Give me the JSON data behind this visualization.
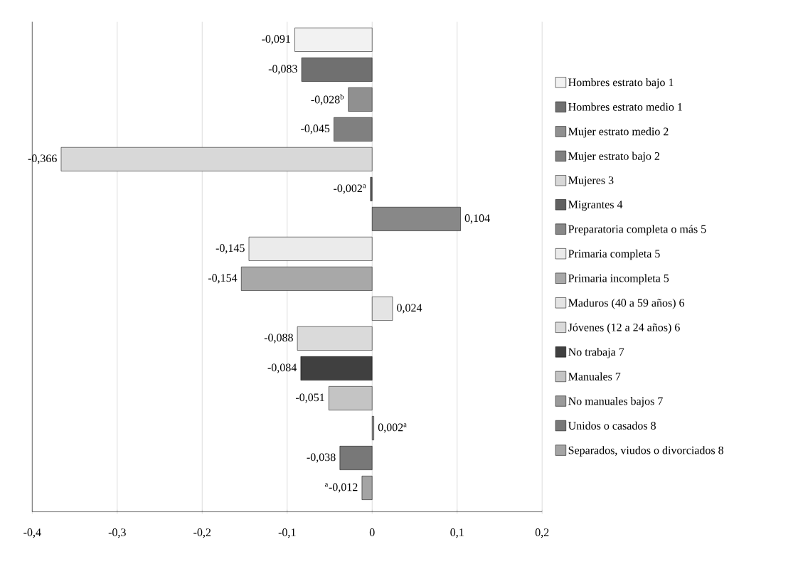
{
  "chart_data": {
    "type": "bar",
    "orientation": "horizontal",
    "categories": [
      null,
      null,
      null,
      null,
      null,
      null,
      null,
      null,
      null,
      null,
      null,
      null,
      null,
      null,
      null,
      null
    ],
    "xlim": [
      -0.4,
      0.2
    ],
    "xticks": [
      {
        "value": -0.4,
        "label": "-0,4"
      },
      {
        "value": -0.3,
        "label": "-0,3"
      },
      {
        "value": -0.2,
        "label": "-0,2"
      },
      {
        "value": -0.1,
        "label": "-0,1"
      },
      {
        "value": 0,
        "label": "0"
      },
      {
        "value": 0.1,
        "label": "0,1"
      },
      {
        "value": 0.2,
        "label": "0,2"
      }
    ],
    "grid": "x",
    "legend": "right",
    "tick_labels": "x",
    "series": [
      {
        "name": "Hombres estrato bajo 1",
        "color": "#f2f2f2",
        "values": [
          -0.091,
          null,
          null,
          null,
          null,
          null,
          null,
          null,
          null,
          null,
          null,
          null,
          null,
          null,
          null,
          null
        ],
        "value_labels": [
          "-0,091",
          null,
          null,
          null,
          null,
          null,
          null,
          null,
          null,
          null,
          null,
          null,
          null,
          null,
          null,
          null
        ]
      },
      {
        "name": "Hombres estrato medio 1",
        "color": "#707070",
        "values": [
          null,
          -0.083,
          null,
          null,
          null,
          null,
          null,
          null,
          null,
          null,
          null,
          null,
          null,
          null,
          null,
          null
        ],
        "value_labels": [
          null,
          "-0,083",
          null,
          null,
          null,
          null,
          null,
          null,
          null,
          null,
          null,
          null,
          null,
          null,
          null,
          null
        ]
      },
      {
        "name": "Mujer estrato medio 2",
        "color": "#909090",
        "values": [
          null,
          null,
          -0.028,
          null,
          null,
          null,
          null,
          null,
          null,
          null,
          null,
          null,
          null,
          null,
          null,
          null
        ],
        "value_labels": [
          null,
          null,
          "-0,028$^{b}$",
          null,
          null,
          null,
          null,
          null,
          null,
          null,
          null,
          null,
          null,
          null,
          null,
          null
        ]
      },
      {
        "name": "Mujer estrato bajo 2",
        "color": "#808080",
        "values": [
          null,
          null,
          null,
          -0.045,
          null,
          null,
          null,
          null,
          null,
          null,
          null,
          null,
          null,
          null,
          null,
          null
        ],
        "value_labels": [
          null,
          null,
          null,
          "-0,045",
          null,
          null,
          null,
          null,
          null,
          null,
          null,
          null,
          null,
          null,
          null,
          null
        ]
      },
      {
        "name": "Mujeres 3",
        "color": "#d8d8d8",
        "values": [
          null,
          null,
          null,
          null,
          -0.366,
          null,
          null,
          null,
          null,
          null,
          null,
          null,
          null,
          null,
          null,
          null
        ],
        "value_labels": [
          null,
          null,
          null,
          null,
          "-0,366",
          null,
          null,
          null,
          null,
          null,
          null,
          null,
          null,
          null,
          null,
          null
        ]
      },
      {
        "name": "Migrantes 4",
        "color": "#606060",
        "values": [
          null,
          null,
          null,
          null,
          null,
          -0.002,
          null,
          null,
          null,
          null,
          null,
          null,
          null,
          null,
          null,
          null
        ],
        "value_labels": [
          null,
          null,
          null,
          null,
          null,
          "-0,002$^{a}$",
          null,
          null,
          null,
          null,
          null,
          null,
          null,
          null,
          null,
          null
        ]
      },
      {
        "name": "Preparatoria completa o más 5",
        "color": "#888888",
        "values": [
          null,
          null,
          null,
          null,
          null,
          null,
          0.104,
          null,
          null,
          null,
          null,
          null,
          null,
          null,
          null,
          null
        ],
        "value_labels": [
          null,
          null,
          null,
          null,
          null,
          null,
          "0,104",
          null,
          null,
          null,
          null,
          null,
          null,
          null,
          null,
          null
        ]
      },
      {
        "name": "Primaria completa 5",
        "color": "#ebebeb",
        "values": [
          null,
          null,
          null,
          null,
          null,
          null,
          null,
          -0.145,
          null,
          null,
          null,
          null,
          null,
          null,
          null,
          null
        ],
        "value_labels": [
          null,
          null,
          null,
          null,
          null,
          null,
          null,
          "-0,145",
          null,
          null,
          null,
          null,
          null,
          null,
          null,
          null
        ]
      },
      {
        "name": "Primaria incompleta 5",
        "color": "#a8a8a8",
        "values": [
          null,
          null,
          null,
          null,
          null,
          null,
          null,
          null,
          -0.154,
          null,
          null,
          null,
          null,
          null,
          null,
          null
        ],
        "value_labels": [
          null,
          null,
          null,
          null,
          null,
          null,
          null,
          null,
          "-0,154",
          null,
          null,
          null,
          null,
          null,
          null,
          null
        ]
      },
      {
        "name": "Maduros (40 a 59 años) 6",
        "color": "#e4e4e4",
        "values": [
          null,
          null,
          null,
          null,
          null,
          null,
          null,
          null,
          null,
          0.024,
          null,
          null,
          null,
          null,
          null,
          null
        ],
        "value_labels": [
          null,
          null,
          null,
          null,
          null,
          null,
          null,
          null,
          null,
          "0,024",
          null,
          null,
          null,
          null,
          null,
          null
        ]
      },
      {
        "name": "Jóvenes (12 a 24 años) 6",
        "color": "#dadada",
        "values": [
          null,
          null,
          null,
          null,
          null,
          null,
          null,
          null,
          null,
          null,
          -0.088,
          null,
          null,
          null,
          null,
          null
        ],
        "value_labels": [
          null,
          null,
          null,
          null,
          null,
          null,
          null,
          null,
          null,
          null,
          "-0,088",
          null,
          null,
          null,
          null,
          null
        ]
      },
      {
        "name": "No trabaja 7",
        "color": "#404040",
        "values": [
          null,
          null,
          null,
          null,
          null,
          null,
          null,
          null,
          null,
          null,
          null,
          -0.084,
          null,
          null,
          null,
          null
        ],
        "value_labels": [
          null,
          null,
          null,
          null,
          null,
          null,
          null,
          null,
          null,
          null,
          null,
          "-0,084",
          null,
          null,
          null,
          null
        ]
      },
      {
        "name": "Manuales 7",
        "color": "#c4c4c4",
        "values": [
          null,
          null,
          null,
          null,
          null,
          null,
          null,
          null,
          null,
          null,
          null,
          null,
          -0.051,
          null,
          null,
          null
        ],
        "value_labels": [
          null,
          null,
          null,
          null,
          null,
          null,
          null,
          null,
          null,
          null,
          null,
          null,
          "-0,051",
          null,
          null,
          null
        ]
      },
      {
        "name": "No manuales bajos 7",
        "color": "#9a9a9a",
        "values": [
          null,
          null,
          null,
          null,
          null,
          null,
          null,
          null,
          null,
          null,
          null,
          null,
          null,
          0.002,
          null,
          null
        ],
        "value_labels": [
          null,
          null,
          null,
          null,
          null,
          null,
          null,
          null,
          null,
          null,
          null,
          null,
          null,
          "0,002$^{a}$",
          null,
          null
        ]
      },
      {
        "name": "Unidos o casados 8",
        "color": "#787878",
        "values": [
          null,
          null,
          null,
          null,
          null,
          null,
          null,
          null,
          null,
          null,
          null,
          null,
          null,
          null,
          -0.038,
          null
        ],
        "value_labels": [
          null,
          null,
          null,
          null,
          null,
          null,
          null,
          null,
          null,
          null,
          null,
          null,
          null,
          null,
          "-0,038",
          null
        ]
      },
      {
        "name": "Separados, viudos o divorciados 8",
        "color": "#a4a4a4",
        "values": [
          null,
          null,
          null,
          null,
          null,
          null,
          null,
          null,
          null,
          null,
          null,
          null,
          null,
          null,
          null,
          -0.012
        ],
        "value_labels": [
          null,
          null,
          null,
          null,
          null,
          null,
          null,
          null,
          null,
          null,
          null,
          null,
          null,
          null,
          null,
          "$^{a}$-0,012"
        ]
      }
    ]
  }
}
